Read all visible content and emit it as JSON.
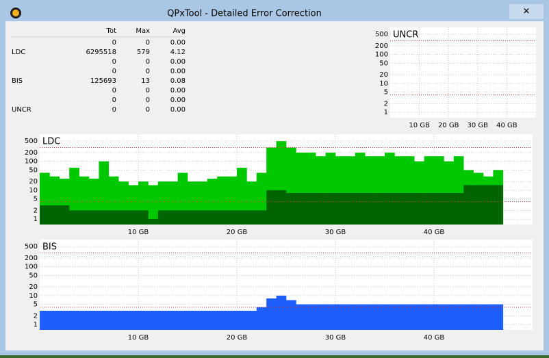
{
  "window": {
    "title": "QPxTool - Detailed Error Correction",
    "close": "✕"
  },
  "table": {
    "columns": [
      "Tot",
      "Max",
      "Avg"
    ],
    "rows": [
      {
        "label": null,
        "values": [
          0,
          0,
          "0.00"
        ]
      },
      {
        "label": "LDC",
        "values": [
          6295518,
          579,
          "4.12"
        ]
      },
      {
        "label": null,
        "values": [
          0,
          0,
          "0.00"
        ]
      },
      {
        "label": null,
        "values": [
          0,
          0,
          "0.00"
        ]
      },
      {
        "label": "BIS",
        "values": [
          125693,
          13,
          "0.08"
        ]
      },
      {
        "label": null,
        "values": [
          0,
          0,
          "0.00"
        ]
      },
      {
        "label": null,
        "values": [
          0,
          0,
          "0.00"
        ]
      },
      {
        "label": "UNCR",
        "values": [
          0,
          0,
          "0.00"
        ]
      }
    ]
  },
  "chart_data": [
    {
      "type": "bar",
      "title": "UNCR",
      "log_y": true,
      "grid": true,
      "xlim": [
        0,
        50
      ],
      "ylim": [
        0.65,
        870
      ],
      "xticks": [
        {
          "value": 10,
          "label": "10 GB"
        },
        {
          "value": 20,
          "label": "20 GB"
        },
        {
          "value": 30,
          "label": "30 GB"
        },
        {
          "value": 40,
          "label": "40 GB"
        }
      ],
      "yticks": [
        1,
        2,
        5,
        10,
        20,
        50,
        100,
        200,
        500
      ],
      "limit_lines": [
        300,
        4
      ],
      "limit_color": "#d04040",
      "x": [],
      "series": []
    },
    {
      "type": "bar",
      "title": "LDC",
      "log_y": true,
      "grid": true,
      "xlim": [
        0,
        50
      ],
      "ylim": [
        0.65,
        870
      ],
      "xticks": [
        {
          "value": 10,
          "label": "10 GB"
        },
        {
          "value": 20,
          "label": "20 GB"
        },
        {
          "value": 30,
          "label": "30 GB"
        },
        {
          "value": 40,
          "label": "40 GB"
        }
      ],
      "yticks": [
        1,
        2,
        5,
        10,
        20,
        50,
        100,
        200,
        500
      ],
      "limit_lines": [
        300,
        4
      ],
      "limit_color": "#d04040",
      "x": [
        0,
        1,
        2,
        3,
        4,
        5,
        6,
        7,
        8,
        9,
        10,
        11,
        12,
        13,
        14,
        15,
        16,
        17,
        18,
        19,
        20,
        21,
        22,
        23,
        24,
        25,
        26,
        27,
        28,
        29,
        30,
        31,
        32,
        33,
        34,
        35,
        36,
        37,
        38,
        39,
        40,
        41,
        42,
        43,
        44,
        45,
        46
      ],
      "series": [
        {
          "color": "#00c800",
          "values": [
            40,
            30,
            25,
            60,
            30,
            25,
            100,
            30,
            20,
            15,
            20,
            15,
            20,
            20,
            40,
            20,
            20,
            25,
            30,
            30,
            60,
            20,
            40,
            300,
            500,
            300,
            200,
            200,
            150,
            200,
            150,
            150,
            200,
            150,
            150,
            200,
            150,
            150,
            100,
            150,
            150,
            100,
            150,
            50,
            40,
            30,
            50
          ]
        },
        {
          "color": "#006400",
          "values": [
            3,
            3,
            3,
            2,
            2,
            2,
            2,
            2,
            2,
            2,
            2,
            1,
            2,
            2,
            2,
            2,
            2,
            2,
            2,
            2,
            2,
            2,
            2,
            10,
            10,
            8,
            8,
            8,
            8,
            8,
            8,
            8,
            8,
            8,
            8,
            8,
            8,
            8,
            8,
            8,
            8,
            8,
            8,
            15,
            15,
            15,
            15
          ]
        }
      ]
    },
    {
      "type": "bar",
      "title": "BIS",
      "log_y": true,
      "grid": true,
      "xlim": [
        0,
        50
      ],
      "ylim": [
        0.65,
        870
      ],
      "xticks": [
        {
          "value": 10,
          "label": "10 GB"
        },
        {
          "value": 20,
          "label": "20 GB"
        },
        {
          "value": 30,
          "label": "30 GB"
        },
        {
          "value": 40,
          "label": "40 GB"
        }
      ],
      "yticks": [
        1,
        2,
        5,
        10,
        20,
        50,
        100,
        200,
        500
      ],
      "limit_lines": [
        300,
        4
      ],
      "limit_color": "#d04040",
      "x": [
        0,
        1,
        2,
        3,
        4,
        5,
        6,
        7,
        8,
        9,
        10,
        11,
        12,
        13,
        14,
        15,
        16,
        17,
        18,
        19,
        20,
        21,
        22,
        23,
        24,
        25,
        26,
        27,
        28,
        29,
        30,
        31,
        32,
        33,
        34,
        35,
        36,
        37,
        38,
        39,
        40,
        41,
        42,
        43,
        44,
        45,
        46
      ],
      "series": [
        {
          "color": "#1e5eff",
          "values": [
            3,
            3,
            3,
            3,
            3,
            3,
            3,
            3,
            3,
            3,
            3,
            3,
            3,
            3,
            3,
            3,
            3,
            3,
            3,
            3,
            3,
            3,
            4,
            8,
            10,
            7,
            5,
            5,
            5,
            5,
            5,
            5,
            5,
            5,
            5,
            5,
            5,
            5,
            5,
            5,
            5,
            5,
            5,
            5,
            5,
            5,
            5
          ]
        }
      ]
    }
  ]
}
